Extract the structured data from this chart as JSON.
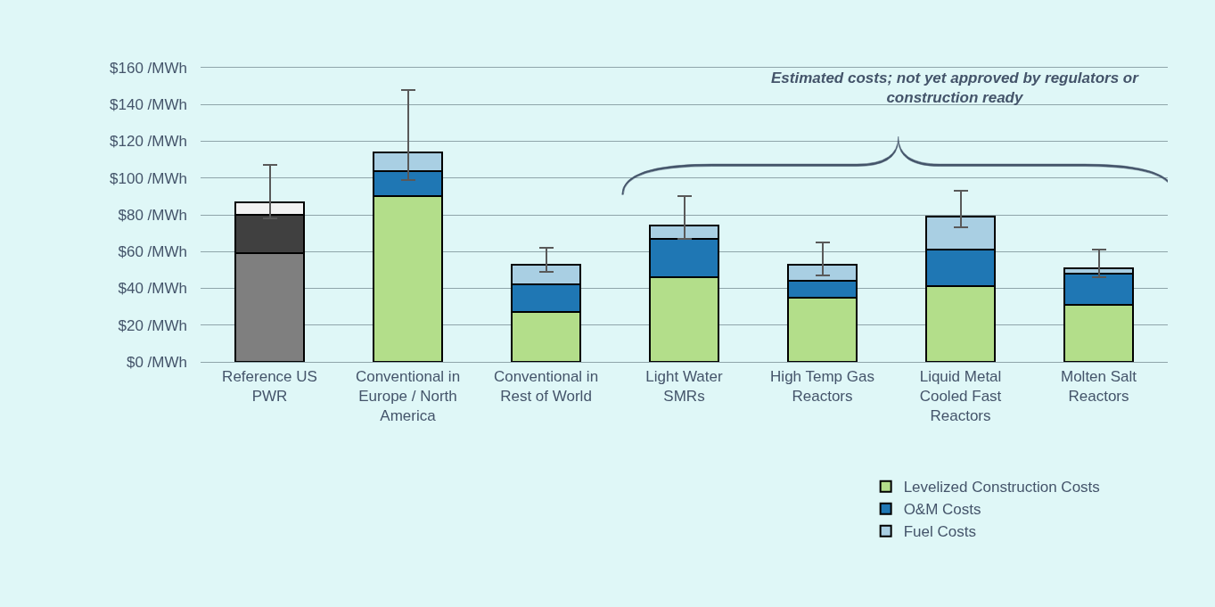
{
  "chart_data": {
    "type": "bar",
    "stacked": true,
    "categories": [
      "Reference US PWR",
      "Conventional in Europe / North America",
      "Conventional in Rest of World",
      "Light Water SMRs",
      "High Temp Gas Reactors",
      "Liquid Metal Cooled Fast Reactors",
      "Molten Salt Reactors"
    ],
    "series": [
      {
        "name": "Levelized Construction Costs",
        "color": "#b3de8a",
        "colors": [
          "#7f7f7f",
          "#b3de8a",
          "#b3de8a",
          "#b3de8a",
          "#b3de8a",
          "#b3de8a",
          "#b3de8a"
        ],
        "values": [
          59,
          90,
          27,
          46,
          35,
          41,
          31
        ]
      },
      {
        "name": "O&M Costs",
        "color": "#1f77b4",
        "colors": [
          "#404040",
          "#1f77b4",
          "#1f77b4",
          "#1f77b4",
          "#1f77b4",
          "#1f77b4",
          "#1f77b4"
        ],
        "values": [
          21,
          14,
          15,
          21,
          9,
          20,
          17
        ]
      },
      {
        "name": "Fuel Costs",
        "color": "#a9cfe3",
        "colors": [
          "#f2f2f2",
          "#a9cfe3",
          "#a9cfe3",
          "#a9cfe3",
          "#a9cfe3",
          "#a9cfe3",
          "#a9cfe3"
        ],
        "values": [
          7,
          10,
          11,
          7,
          9,
          18,
          3
        ],
        "errors": [
          [
            78,
            107
          ],
          [
            99,
            148
          ],
          [
            49,
            62
          ],
          [
            67,
            90
          ],
          [
            47,
            65
          ],
          [
            73,
            93
          ],
          [
            46,
            61
          ]
        ]
      }
    ],
    "ylim": [
      0,
      160
    ],
    "yticks": [
      {
        "value": 0,
        "label": "$0 /MWh"
      },
      {
        "value": 20,
        "label": "$20 /MWh"
      },
      {
        "value": 40,
        "label": "$40 /MWh"
      },
      {
        "value": 60,
        "label": "$60 /MWh"
      },
      {
        "value": 80,
        "label": "$80 /MWh"
      },
      {
        "value": 100,
        "label": "$100 /MWh"
      },
      {
        "value": 120,
        "label": "$120 /MWh"
      },
      {
        "value": 140,
        "label": "$140 /MWh"
      },
      {
        "value": 160,
        "label": "$160 /MWh"
      }
    ],
    "grid": "y",
    "legend": "bottom right",
    "annotations": [
      "Estimated costs; not yet approved by regulators or construction ready"
    ]
  }
}
